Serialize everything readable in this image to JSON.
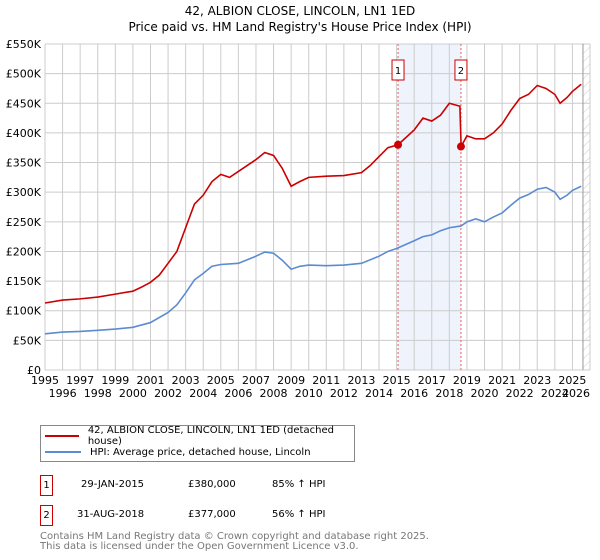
{
  "title": "42, ALBION CLOSE, LINCOLN, LN1 1ED",
  "subtitle": "Price paid vs. HM Land Registry's House Price Index (HPI)",
  "chart_data": {
    "type": "line",
    "xlim": [
      1995,
      2026
    ],
    "ylim": [
      0,
      550000
    ],
    "yticks": [
      0,
      50000,
      100000,
      150000,
      200000,
      250000,
      300000,
      350000,
      400000,
      450000,
      500000,
      550000
    ],
    "ytick_labels": [
      "£0",
      "£50K",
      "£100K",
      "£150K",
      "£200K",
      "£250K",
      "£300K",
      "£350K",
      "£400K",
      "£450K",
      "£500K",
      "£550K"
    ],
    "xticks": [
      1995,
      1996,
      1997,
      1998,
      1999,
      2000,
      2001,
      2002,
      2003,
      2004,
      2005,
      2006,
      2007,
      2008,
      2009,
      2010,
      2011,
      2012,
      2013,
      2014,
      2015,
      2016,
      2017,
      2018,
      2019,
      2020,
      2021,
      2022,
      2023,
      2024,
      2025,
      2026
    ],
    "grid": true,
    "forecast_from": 2025.6,
    "series": [
      {
        "name": "42, ALBION CLOSE, LINCOLN, LN1 1ED (detached house)",
        "color": "#cc0000",
        "x": [
          1995,
          1996,
          1997,
          1998,
          1999,
          2000,
          2000.5,
          2001,
          2001.5,
          2002,
          2002.5,
          2003,
          2003.5,
          2004,
          2004.5,
          2005,
          2005.5,
          2006,
          2007,
          2007.5,
          2008,
          2008.5,
          2009,
          2009.5,
          2010,
          2011,
          2012,
          2013,
          2013.5,
          2014,
          2014.5,
          2015.08,
          2016,
          2016.5,
          2017,
          2017.5,
          2018,
          2018.6,
          2018.67,
          2019,
          2019.5,
          2020,
          2020.5,
          2021,
          2021.5,
          2022,
          2022.5,
          2023,
          2023.5,
          2024,
          2024.3,
          2024.7,
          2025,
          2025.5
        ],
        "y": [
          113000,
          118000,
          120000,
          123000,
          128000,
          133000,
          140000,
          148000,
          160000,
          180000,
          200000,
          240000,
          280000,
          295000,
          318000,
          330000,
          325000,
          335000,
          355000,
          367000,
          362000,
          340000,
          310000,
          318000,
          325000,
          327000,
          328000,
          333000,
          345000,
          360000,
          375000,
          380000,
          405000,
          425000,
          420000,
          430000,
          450000,
          445000,
          377000,
          395000,
          390000,
          390000,
          400000,
          415000,
          438000,
          458000,
          465000,
          480000,
          475000,
          465000,
          450000,
          460000,
          470000,
          482000
        ]
      },
      {
        "name": "HPI: Average price, detached house, Lincoln",
        "color": "#5b8bd0",
        "x": [
          1995,
          1996,
          1997,
          1998,
          1999,
          2000,
          2001,
          2002,
          2002.5,
          2003,
          2003.5,
          2004,
          2004.5,
          2005,
          2006,
          2007,
          2007.5,
          2008,
          2008.5,
          2009,
          2009.5,
          2010,
          2011,
          2012,
          2013,
          2014,
          2014.5,
          2015,
          2016,
          2016.5,
          2017,
          2017.5,
          2018,
          2018.67,
          2019,
          2019.5,
          2020,
          2020.5,
          2021,
          2021.5,
          2022,
          2022.5,
          2023,
          2023.5,
          2024,
          2024.3,
          2024.7,
          2025,
          2025.5
        ],
        "y": [
          61000,
          64000,
          65000,
          67000,
          69000,
          72000,
          80000,
          97000,
          110000,
          130000,
          152000,
          163000,
          175000,
          178000,
          180000,
          192000,
          199000,
          197000,
          185000,
          170000,
          175000,
          177000,
          176000,
          177000,
          180000,
          192000,
          200000,
          205000,
          218000,
          225000,
          228000,
          235000,
          240000,
          243000,
          250000,
          255000,
          250000,
          258000,
          265000,
          278000,
          290000,
          296000,
          305000,
          308000,
          300000,
          288000,
          295000,
          303000,
          310000
        ]
      }
    ],
    "annotations": [
      {
        "label": "1",
        "x": 2015.08,
        "y": 380000
      },
      {
        "label": "2",
        "x": 2018.66,
        "y": 377000
      }
    ]
  },
  "legend": {
    "items": [
      {
        "label": "42, ALBION CLOSE, LINCOLN, LN1 1ED (detached house)",
        "color": "#cc0000"
      },
      {
        "label": "HPI: Average price, detached house, Lincoln",
        "color": "#5b8bd0"
      }
    ]
  },
  "sales": [
    {
      "num": "1",
      "date": "29-JAN-2015",
      "price": "£380,000",
      "hpi": "85% ↑ HPI"
    },
    {
      "num": "2",
      "date": "31-AUG-2018",
      "price": "£377,000",
      "hpi": "56% ↑ HPI"
    }
  ],
  "footer": {
    "line1": "Contains HM Land Registry data © Crown copyright and database right 2025.",
    "line2": "This data is licensed under the Open Government Licence v3.0."
  }
}
